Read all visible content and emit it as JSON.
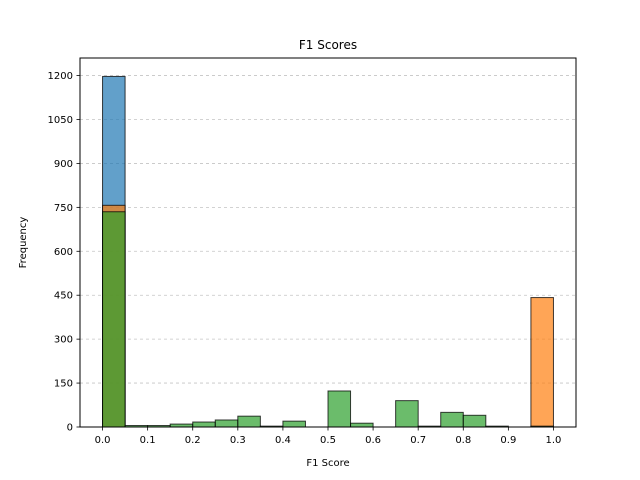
{
  "chart_data": {
    "type": "bar",
    "title": "F1 Scores",
    "xlabel": "F1 Score",
    "ylabel": "Frequency",
    "xlim": [
      -0.05,
      1.05
    ],
    "ylim": [
      0,
      1260
    ],
    "xticks": [
      "0.0",
      "0.1",
      "0.2",
      "0.3",
      "0.4",
      "0.5",
      "0.6",
      "0.7",
      "0.8",
      "0.9",
      "1.0"
    ],
    "yticks": [
      "0",
      "150",
      "300",
      "450",
      "600",
      "750",
      "900",
      "1050",
      "1200"
    ],
    "grid": "y-dashed",
    "bin_edges": [
      0.0,
      0.05,
      0.1,
      0.15,
      0.2,
      0.25,
      0.3,
      0.35,
      0.4,
      0.45,
      0.5,
      0.55,
      0.6,
      0.65,
      0.7,
      0.75,
      0.8,
      0.85,
      0.9,
      0.95,
      1.0
    ],
    "series": [
      {
        "color": "#1f77b4",
        "values": [
          1197,
          0,
          0,
          0,
          0,
          0,
          0,
          0,
          0,
          0,
          0,
          0,
          0,
          0,
          0,
          0,
          0,
          0,
          0,
          0
        ]
      },
      {
        "color": "#ff7f0e",
        "values": [
          757,
          0,
          0,
          0,
          0,
          0,
          0,
          0,
          0,
          0,
          0,
          0,
          0,
          0,
          0,
          0,
          0,
          0,
          0,
          442
        ]
      },
      {
        "color": "#2ca02c",
        "values": [
          735,
          5,
          5,
          10,
          17,
          24,
          37,
          3,
          20,
          0,
          123,
          13,
          0,
          90,
          3,
          50,
          40,
          3,
          0,
          3
        ]
      }
    ]
  }
}
